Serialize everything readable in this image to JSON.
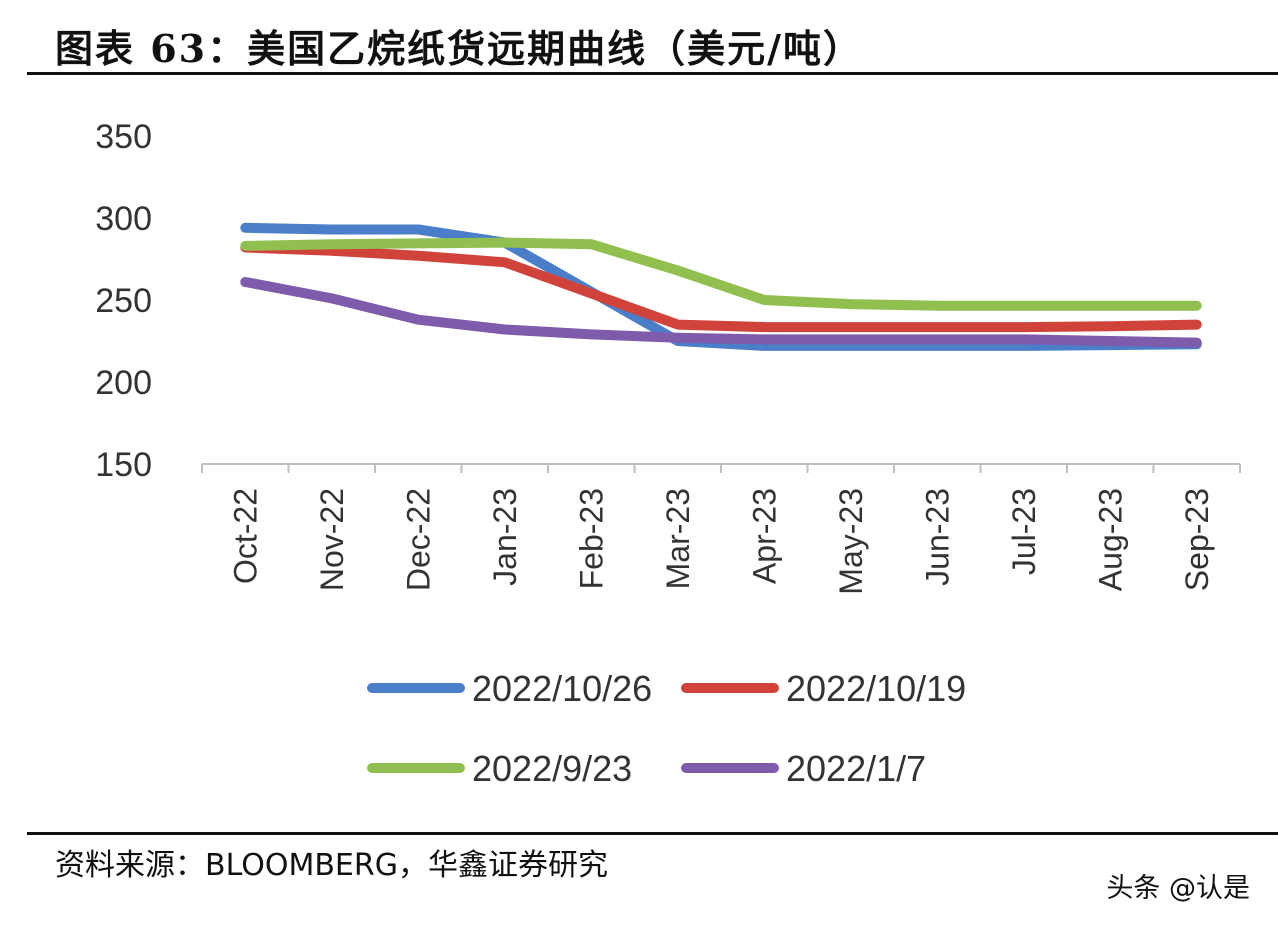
{
  "header": {
    "title": "图表 63：美国乙烷纸货远期曲线（美元/吨）"
  },
  "footer": {
    "source": "资料来源：BLOOMBERG，华鑫证券研究",
    "watermark": "头条 @认是"
  },
  "chart_data": {
    "type": "line",
    "title": "图表 63：美国乙烷纸货远期曲线（美元/吨）",
    "xlabel": "",
    "ylabel": "美元/吨",
    "ylim": [
      150,
      350
    ],
    "yticks": [
      150,
      200,
      250,
      300,
      350
    ],
    "grid": false,
    "legend_position": "bottom",
    "categories": [
      "Oct-22",
      "Nov-22",
      "Dec-22",
      "Jan-23",
      "Feb-23",
      "Mar-23",
      "Apr-23",
      "May-23",
      "Jun-23",
      "Jul-23",
      "Aug-23",
      "Sep-23"
    ],
    "series": [
      {
        "name": "2022/10/26",
        "color": "#4a7ec9",
        "values": [
          294,
          293,
          293,
          285,
          255,
          225,
          222,
          222,
          222,
          222,
          222.5,
          223
        ]
      },
      {
        "name": "2022/10/19",
        "color": "#d0433b",
        "values": [
          282,
          280,
          277,
          273,
          254,
          235,
          233.5,
          233.5,
          233.5,
          233.5,
          234,
          235
        ]
      },
      {
        "name": "2022/9/23",
        "color": "#92c050",
        "values": [
          283,
          284,
          284.5,
          285,
          284,
          268,
          250,
          247.5,
          246.5,
          246.5,
          246.5,
          246.5
        ]
      },
      {
        "name": "2022/1/7",
        "color": "#7e5bab",
        "values": [
          261,
          251,
          238,
          232,
          229,
          227,
          226,
          226,
          226,
          226,
          225,
          224
        ]
      }
    ]
  }
}
